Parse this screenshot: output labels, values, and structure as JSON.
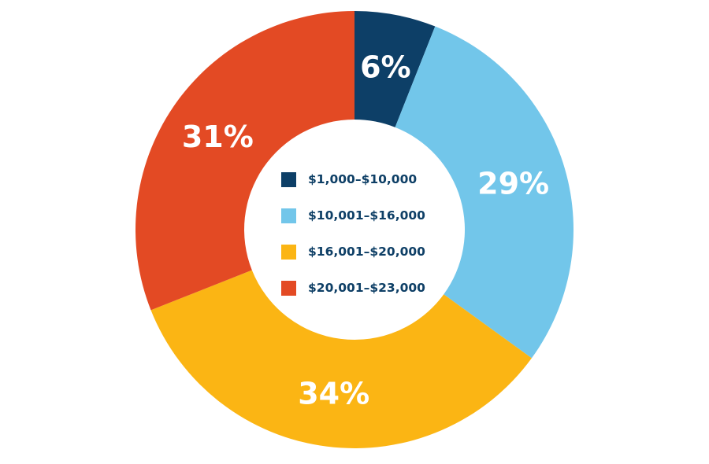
{
  "chart_data": {
    "type": "pie",
    "variant": "donut",
    "categories": [
      "$1,000–$10,000",
      "$10,001–$16,000",
      "$16,001–$20,000",
      "$20,001–$23,000"
    ],
    "values": [
      6,
      29,
      34,
      31
    ],
    "value_labels": [
      "6%",
      "29%",
      "34%",
      "31%"
    ],
    "colors": [
      "#0d3f67",
      "#72c6ea",
      "#fbb514",
      "#e34a24"
    ],
    "legend_placement": "center",
    "start_angle_deg": 0,
    "direction": "clockwise"
  }
}
